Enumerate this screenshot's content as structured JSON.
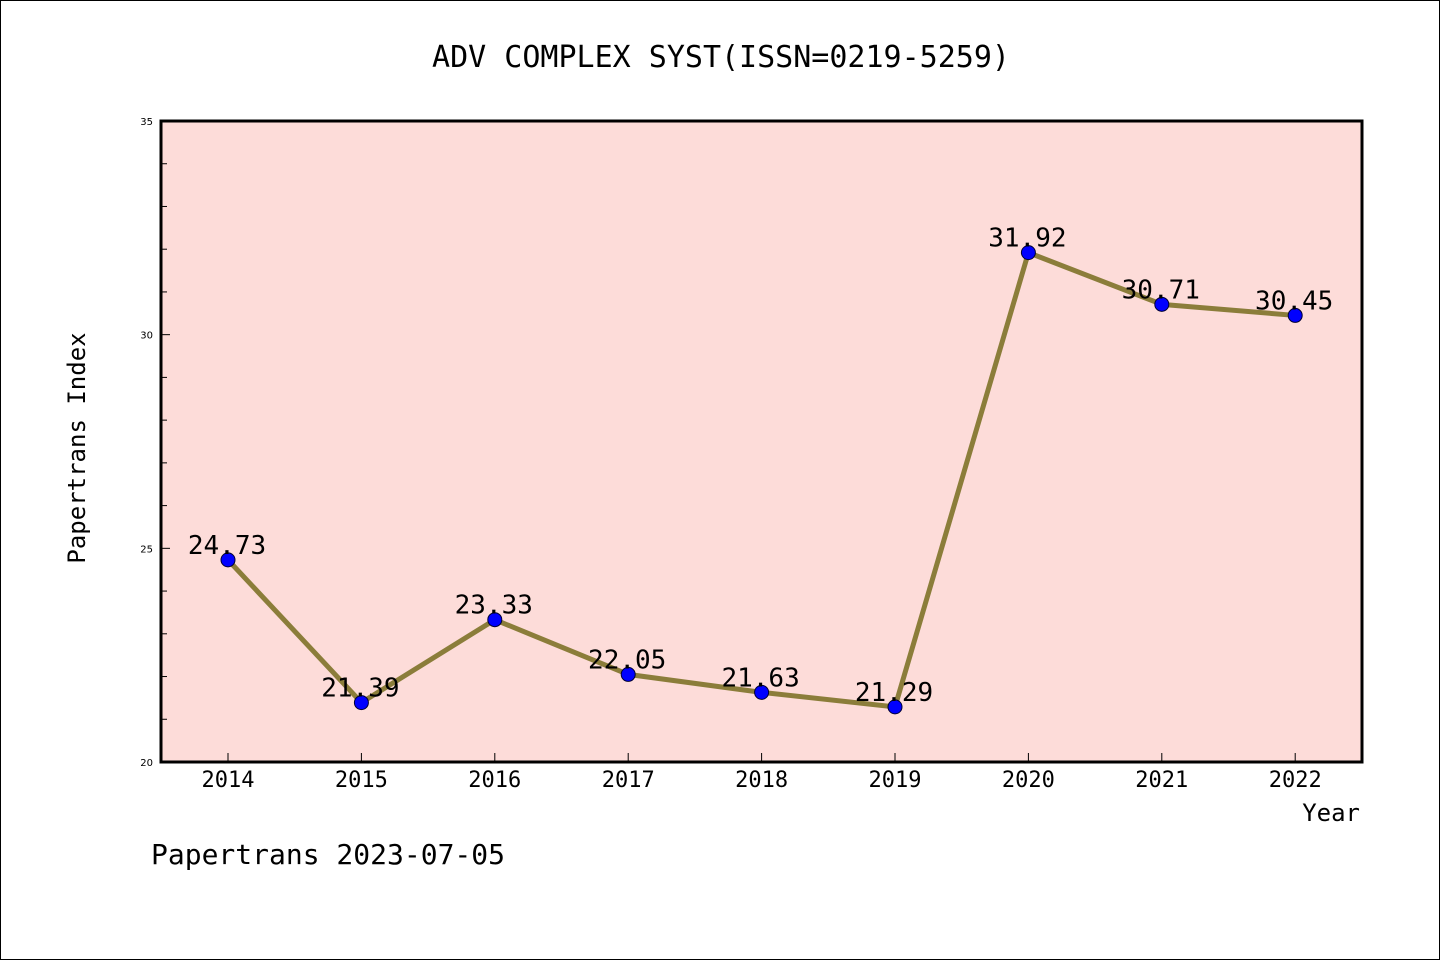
{
  "chart_data": {
    "type": "line",
    "title": "ADV COMPLEX SYST(ISSN=0219-5259)",
    "xlabel": "Year",
    "ylabel": "Papertrans Index",
    "categories": [
      "2014",
      "2015",
      "2016",
      "2017",
      "2018",
      "2019",
      "2020",
      "2021",
      "2022"
    ],
    "series": [
      {
        "values": [
          24.73,
          21.39,
          23.33,
          22.05,
          21.63,
          21.29,
          31.92,
          30.71,
          30.45
        ],
        "labels": [
          "24.73",
          "21.39",
          "23.33",
          "22.05",
          "21.63",
          "21.29",
          "31.92",
          "30.71",
          "30.45"
        ]
      }
    ],
    "ylim": [
      20,
      35
    ],
    "yticks": [
      "20",
      "25",
      "30",
      "35"
    ],
    "ytick_values": [
      20,
      25,
      30,
      35
    ],
    "y_minor_step": 1,
    "grid": false,
    "legend": "none"
  },
  "footer": "Papertrans 2023-07-05",
  "colors": {
    "plot_background": "#fddcd9",
    "line": "#8b7d3a",
    "marker": "#0000ff",
    "axis": "#000000"
  }
}
